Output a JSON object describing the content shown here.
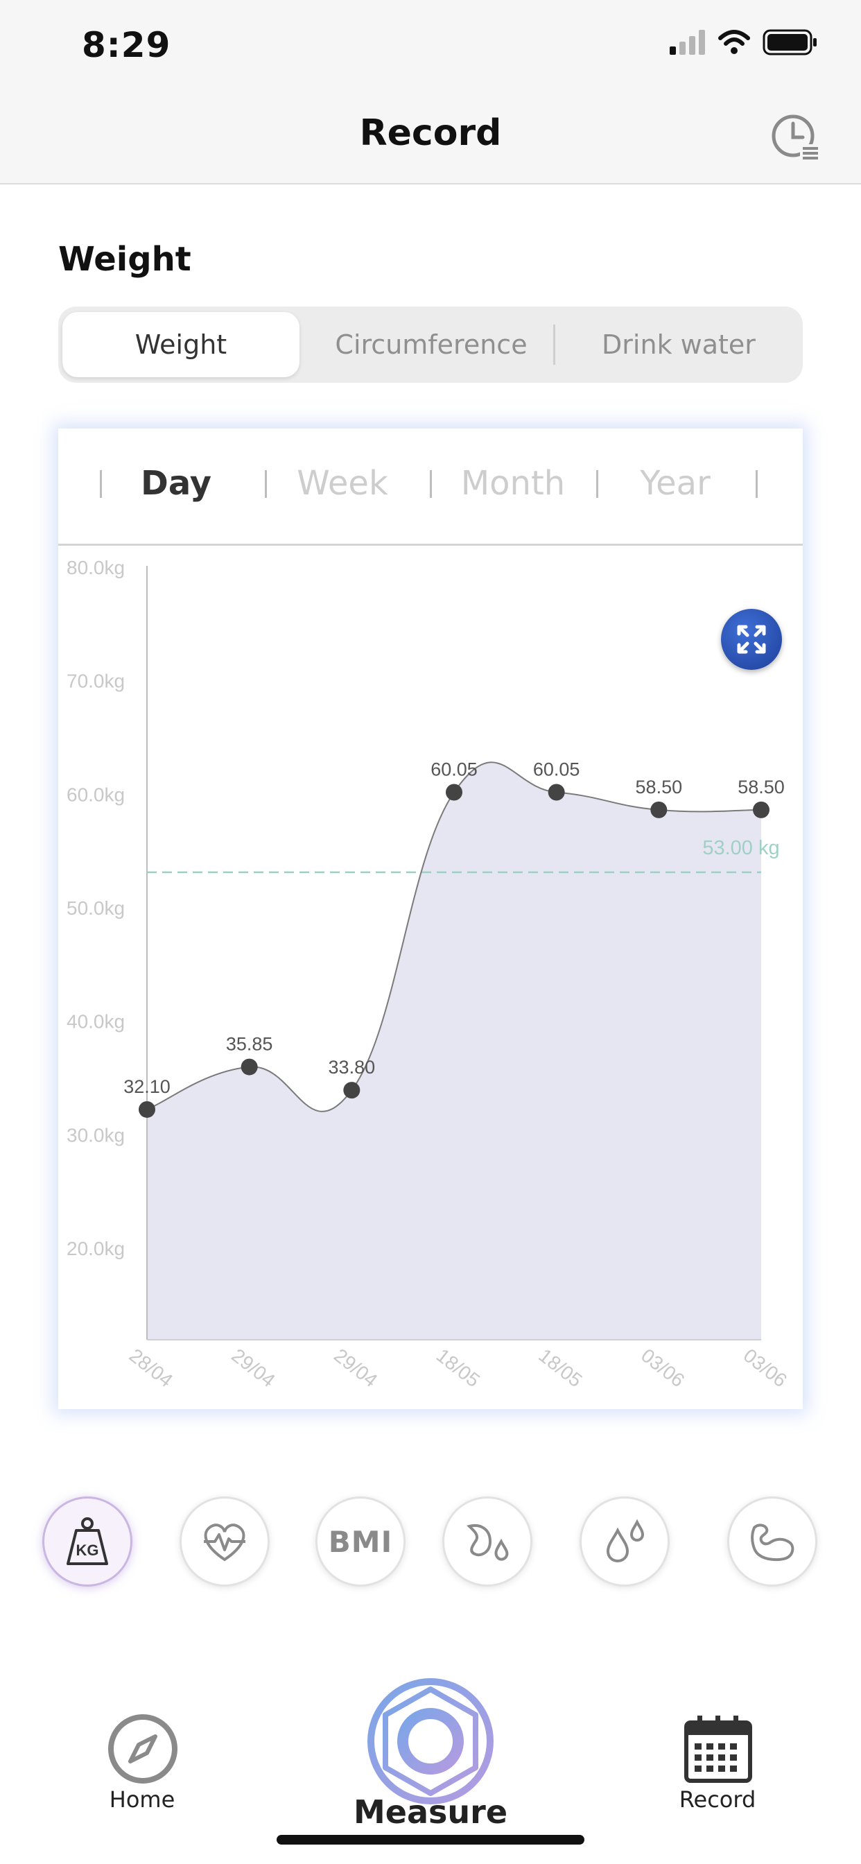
{
  "status_bar": {
    "time": "8:29"
  },
  "nav": {
    "title": "Record"
  },
  "section": {
    "title": "Weight"
  },
  "segments": [
    "Weight",
    "Circumference",
    "Drink water"
  ],
  "periods": [
    "Day",
    "Week",
    "Month",
    "Year"
  ],
  "chart_data": {
    "type": "area",
    "x": [
      "28/04",
      "29/04",
      "29/04",
      "18/05",
      "18/05",
      "03/06",
      "03/06"
    ],
    "values": [
      32.1,
      35.85,
      33.8,
      60.05,
      60.05,
      58.5,
      58.5
    ],
    "point_labels": [
      "32.10",
      "35.85",
      "33.80",
      "60.05",
      "60.05",
      "58.50",
      "58.50"
    ],
    "y_ticks": [
      "80.0kg",
      "70.0kg",
      "60.0kg",
      "50.0kg",
      "40.0kg",
      "30.0kg",
      "20.0kg"
    ],
    "ylim": [
      13,
      80
    ],
    "target": {
      "value": 53.0,
      "label": "53.00 kg"
    },
    "colors": {
      "fill": "#e6e6f2",
      "line": "#7a7a7a",
      "point": "#444444",
      "target": "#9fd0c4"
    }
  },
  "metric_icons": [
    "kg-weight-icon",
    "heart-rate-icon",
    "bmi-icon",
    "body-fat-icon",
    "water-drops-icon",
    "muscle-icon"
  ],
  "metric_bmi_text": "BMI",
  "metric_kg_text": "KG",
  "tabbar": {
    "home": "Home",
    "measure": "Measure",
    "record": "Record"
  }
}
